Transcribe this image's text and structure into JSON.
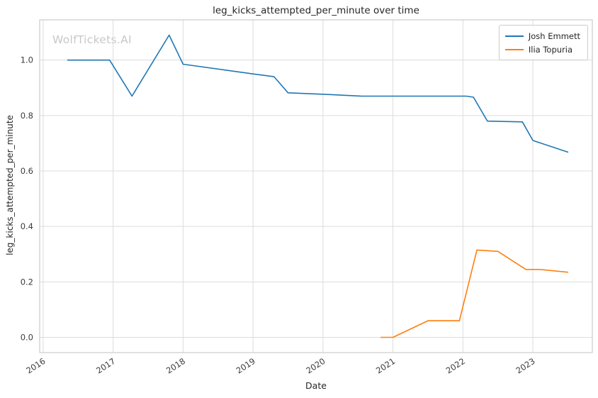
{
  "watermark": "WolfTickets.AI",
  "chart_data": {
    "type": "line",
    "title": "leg_kicks_attempted_per_minute over time",
    "xlabel": "Date",
    "ylabel": "leg_kicks_attempted_per_minute",
    "xlim": [
      2015.95,
      2023.85
    ],
    "ylim": [
      -0.055,
      1.145
    ],
    "x_ticks": [
      2016,
      2017,
      2018,
      2019,
      2020,
      2021,
      2022,
      2023
    ],
    "y_ticks": [
      0.0,
      0.2,
      0.4,
      0.6,
      0.8,
      1.0
    ],
    "grid": true,
    "legend_position": "upper right",
    "colors": {
      "grid": "#dcdcdc",
      "spine": "#cccccc",
      "tick_text": "#3b3b3b",
      "text": "#262626",
      "watermark": "#c8c8c8"
    },
    "series": [
      {
        "name": "Josh Emmett",
        "color": "#1f77b4",
        "points": [
          [
            2016.35,
            1.0
          ],
          [
            2016.95,
            1.0
          ],
          [
            2017.27,
            0.87
          ],
          [
            2017.8,
            1.09
          ],
          [
            2018.0,
            0.985
          ],
          [
            2019.0,
            0.95
          ],
          [
            2019.3,
            0.94
          ],
          [
            2019.5,
            0.882
          ],
          [
            2020.05,
            0.876
          ],
          [
            2020.55,
            0.87
          ],
          [
            2022.05,
            0.87
          ],
          [
            2022.15,
            0.866
          ],
          [
            2022.35,
            0.78
          ],
          [
            2022.85,
            0.777
          ],
          [
            2023.0,
            0.71
          ],
          [
            2023.5,
            0.668
          ]
        ]
      },
      {
        "name": "Ilia Topuria",
        "color": "#ff7f0e",
        "points": [
          [
            2020.83,
            0.0
          ],
          [
            2021.0,
            0.0
          ],
          [
            2021.5,
            0.06
          ],
          [
            2021.95,
            0.06
          ],
          [
            2022.2,
            0.315
          ],
          [
            2022.5,
            0.31
          ],
          [
            2022.9,
            0.245
          ],
          [
            2023.1,
            0.245
          ],
          [
            2023.5,
            0.235
          ]
        ]
      }
    ]
  }
}
